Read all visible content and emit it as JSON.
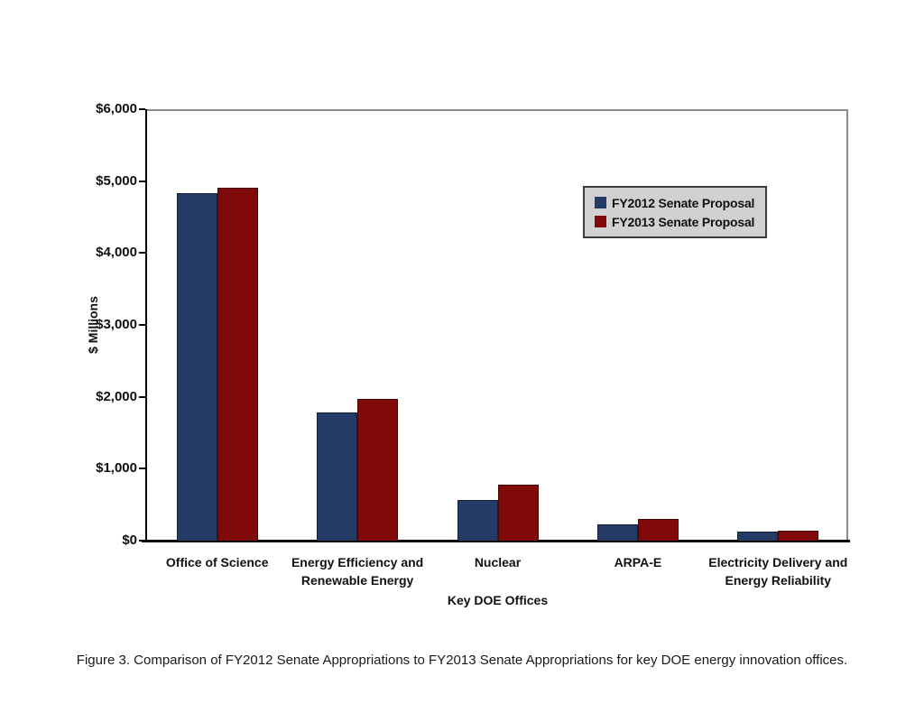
{
  "figure": {
    "caption": "Figure 3. Comparison of FY2012 Senate Appropriations to FY2013 Senate Appropriations for key DOE energy innovation offices."
  },
  "chart_data": {
    "type": "bar",
    "title": "",
    "xlabel": "Key DOE Offices",
    "ylabel": "$ Millions",
    "ylim": [
      0,
      6000
    ],
    "ytick_interval": 1000,
    "ytick_labels": [
      "$0",
      "$1,000",
      "$2,000",
      "$3,000",
      "$4,000",
      "$5,000",
      "$6,000"
    ],
    "grid": false,
    "categories": [
      "Office of Science",
      "Energy Efficiency and Renewable Energy",
      "Nuclear",
      "ARPA-E",
      "Electricity Delivery and Energy Reliability"
    ],
    "category_label_lines": [
      [
        "Office of Science"
      ],
      [
        "Energy Efficiency and",
        "Renewable Energy"
      ],
      [
        "Nuclear"
      ],
      [
        "ARPA-E"
      ],
      [
        "Electricity Delivery and",
        "Energy Reliability"
      ]
    ],
    "series": [
      {
        "name": "FY2012 Senate Proposal",
        "color": "#233B66",
        "values": [
          4830,
          1780,
          560,
          230,
          130
        ]
      },
      {
        "name": "FY2013 Senate Proposal",
        "color": "#800A0A",
        "values": [
          4910,
          1970,
          780,
          300,
          140
        ]
      }
    ],
    "legend": {
      "position": "inside-top-right",
      "background": "#D1D1D1",
      "border_color": "#3A3A3A",
      "entries": [
        {
          "label": "FY2012 Senate Proposal",
          "color": "#233B66"
        },
        {
          "label": "FY2013 Senate Proposal",
          "color": "#800A0A"
        }
      ]
    }
  },
  "colors": {
    "axis": "#000000",
    "plot_border": "#8C8C8C",
    "text": "#111111",
    "background": "#FFFFFF"
  }
}
